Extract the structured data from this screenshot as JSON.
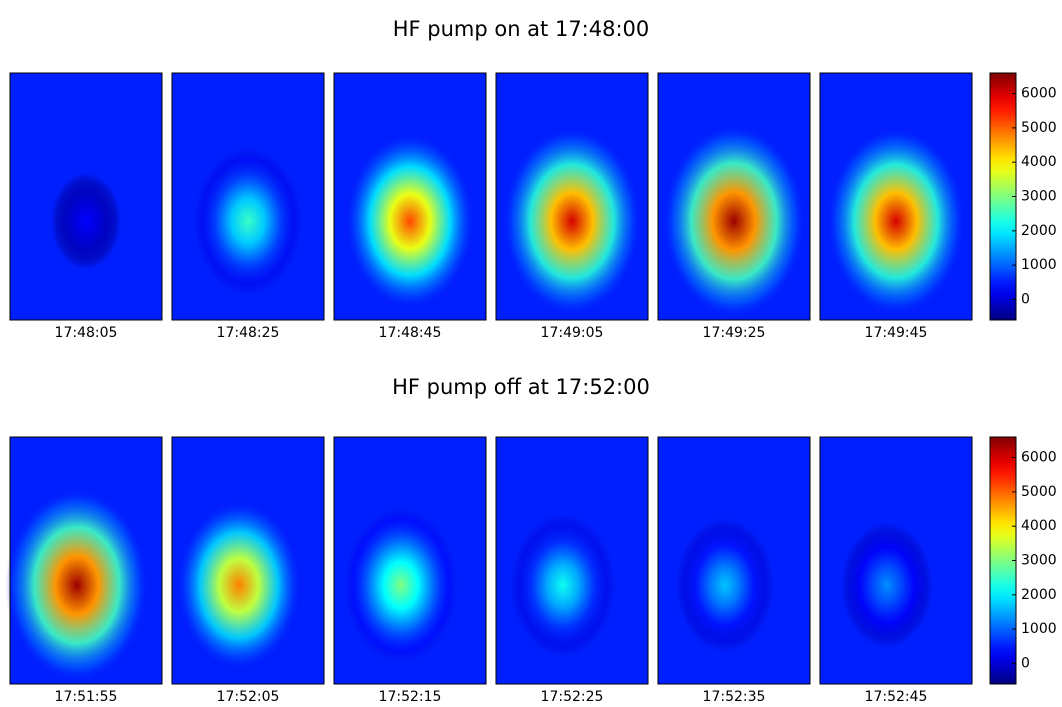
{
  "chart_data": [
    {
      "type": "heatmap",
      "title": "HF pump on at 17:48:00",
      "categories": [
        "17:48:05",
        "17:48:25",
        "17:48:45",
        "17:49:05",
        "17:49:25",
        "17:49:45"
      ],
      "values": [
        300,
        2500,
        5200,
        6000,
        6400,
        6000
      ],
      "ylim": [
        -600,
        6600
      ],
      "yticks": [
        0,
        1000,
        2000,
        3000,
        4000,
        5000,
        6000
      ]
    },
    {
      "type": "heatmap",
      "title": "HF pump off at 17:52:00",
      "categories": [
        "17:51:55",
        "17:52:05",
        "17:52:15",
        "17:52:25",
        "17:52:35",
        "17:52:45"
      ],
      "values": [
        6400,
        4800,
        3000,
        2200,
        1700,
        1300
      ],
      "ylim": [
        -600,
        6600
      ],
      "yticks": [
        0,
        1000,
        2000,
        3000,
        4000,
        5000,
        6000
      ]
    }
  ]
}
